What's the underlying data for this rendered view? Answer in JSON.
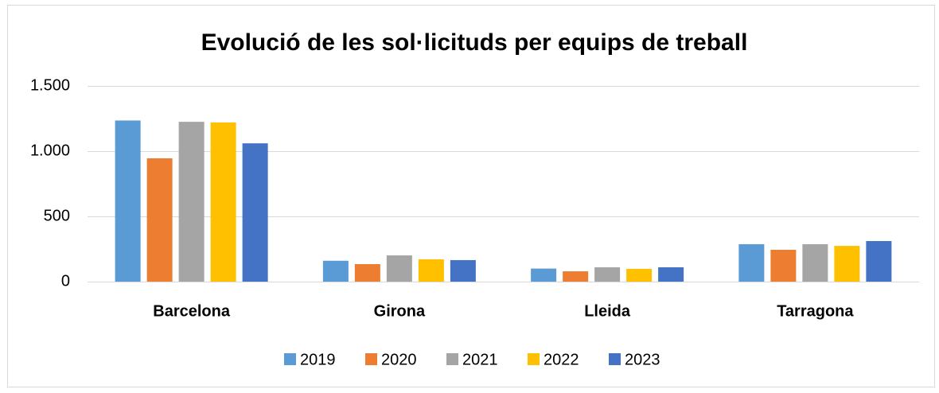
{
  "chart_data": {
    "type": "bar",
    "title": "Evolució de les sol·licituds per equips de treball",
    "categories": [
      "Barcelona",
      "Girona",
      "Lleida",
      "Tarragona"
    ],
    "series": [
      {
        "name": "2019",
        "color": "#5b9bd5",
        "values": [
          1235,
          160,
          100,
          287
        ]
      },
      {
        "name": "2020",
        "color": "#ed7d31",
        "values": [
          945,
          134,
          79,
          244
        ]
      },
      {
        "name": "2021",
        "color": "#a5a5a5",
        "values": [
          1225,
          201,
          110,
          287
        ]
      },
      {
        "name": "2022",
        "color": "#ffc000",
        "values": [
          1220,
          171,
          98,
          274
        ]
      },
      {
        "name": "2023",
        "color": "#4472c4",
        "values": [
          1060,
          165,
          110,
          311
        ]
      }
    ],
    "ylim": [
      0,
      1500
    ],
    "yticks": [
      0,
      500,
      {
        "value": 1000,
        "label": "1.000"
      },
      {
        "value": 1500,
        "label": "1.500"
      }
    ],
    "grid": true,
    "legend": "bottom"
  }
}
